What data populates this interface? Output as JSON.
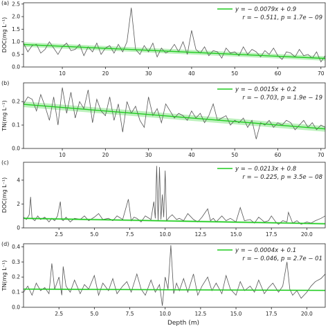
{
  "figure": {
    "xlabel": "Depth (m)"
  },
  "colors": {
    "data": "#555555",
    "fit": "#1fcc1f",
    "band": "#8fe88f",
    "axis": "#222222"
  },
  "chart_data": [
    {
      "type": "line",
      "panel_label": "(a)",
      "ylabel": "DOC(mg L⁻¹)",
      "xlim": [
        1,
        71
      ],
      "ylim": [
        0.0,
        2.55
      ],
      "xticks": [
        10,
        20,
        30,
        40,
        50,
        60,
        70
      ],
      "yticks": [
        0.0,
        0.5,
        1.0,
        1.5,
        2.0,
        2.5
      ],
      "ytick_labels": [
        "0.0",
        "0.5",
        "1.0",
        "1.5",
        "2.0",
        "2.5"
      ],
      "legend_line1": "y = − 0.0079x + 0.9",
      "legend_line2": "r = − 0.511, p = 1.7e − 09",
      "fit": {
        "slope": -0.0079,
        "intercept": 0.9,
        "band": 0.09
      },
      "series": [
        {
          "x": [
            1,
            2,
            3,
            4,
            5,
            6,
            7,
            8,
            9,
            10,
            11,
            12,
            13,
            14,
            15,
            16,
            17,
            18,
            19,
            20,
            21,
            22,
            23,
            24,
            25,
            26,
            27,
            28,
            29,
            30,
            31,
            32,
            33,
            34,
            35,
            36,
            37,
            38,
            39,
            40,
            41,
            42,
            43,
            44,
            45,
            46,
            47,
            48,
            49,
            50,
            51,
            52,
            53,
            54,
            55,
            56,
            57,
            58,
            59,
            60,
            61,
            62,
            63,
            64,
            65,
            66,
            67,
            68,
            69,
            70,
            71
          ],
          "y": [
            0.95,
            0.6,
            0.85,
            0.9,
            0.55,
            0.7,
            1.0,
            0.75,
            0.5,
            0.8,
            0.95,
            0.65,
            0.7,
            0.9,
            0.45,
            0.8,
            0.6,
            0.95,
            0.5,
            0.75,
            0.85,
            0.55,
            0.9,
            0.6,
            1.0,
            2.35,
            0.7,
            0.5,
            0.85,
            0.6,
            0.95,
            0.4,
            0.75,
            0.55,
            0.65,
            0.9,
            0.6,
            1.0,
            0.5,
            1.45,
            0.7,
            0.55,
            0.8,
            0.45,
            0.65,
            0.6,
            0.35,
            0.75,
            0.55,
            0.6,
            0.45,
            0.8,
            0.5,
            0.7,
            0.6,
            0.4,
            0.65,
            0.5,
            0.75,
            0.45,
            0.3,
            0.6,
            0.55,
            0.4,
            0.7,
            0.45,
            0.5,
            0.35,
            0.6,
            0.2,
            0.45
          ]
        }
      ]
    },
    {
      "type": "line",
      "panel_label": "(b)",
      "ylabel": "TN(mg L⁻¹)",
      "xlim": [
        1,
        71
      ],
      "ylim": [
        0.0,
        0.28
      ],
      "xticks": [
        10,
        20,
        30,
        40,
        50,
        60,
        70
      ],
      "yticks": [
        0.0,
        0.1,
        0.2
      ],
      "ytick_labels": [
        "0.0",
        "0.1",
        "0.2"
      ],
      "legend_line1": "y = − 0.0015x + 0.2",
      "legend_line2": "r = − 0.703, p = 1.9e − 19",
      "fit": {
        "slope": -0.0015,
        "intercept": 0.19,
        "band": 0.012
      },
      "series": [
        {
          "x": [
            1,
            2,
            3,
            4,
            5,
            6,
            7,
            8,
            9,
            10,
            11,
            12,
            13,
            14,
            15,
            16,
            17,
            18,
            19,
            20,
            21,
            22,
            23,
            24,
            25,
            26,
            27,
            28,
            29,
            30,
            31,
            32,
            33,
            34,
            35,
            36,
            37,
            38,
            39,
            40,
            41,
            42,
            43,
            44,
            45,
            46,
            47,
            48,
            49,
            50,
            51,
            52,
            53,
            54,
            55,
            56,
            57,
            58,
            59,
            60,
            61,
            62,
            63,
            64,
            65,
            66,
            67,
            68,
            69,
            70,
            71
          ],
          "y": [
            0.19,
            0.22,
            0.21,
            0.16,
            0.23,
            0.18,
            0.12,
            0.22,
            0.1,
            0.26,
            0.15,
            0.24,
            0.13,
            0.2,
            0.17,
            0.25,
            0.11,
            0.21,
            0.16,
            0.14,
            0.22,
            0.12,
            0.19,
            0.07,
            0.2,
            0.15,
            0.18,
            0.12,
            0.09,
            0.22,
            0.14,
            0.17,
            0.11,
            0.19,
            0.16,
            0.13,
            0.15,
            0.14,
            0.12,
            0.16,
            0.13,
            0.15,
            0.11,
            0.14,
            0.19,
            0.12,
            0.13,
            0.14,
            0.1,
            0.12,
            0.11,
            0.13,
            0.09,
            0.12,
            0.04,
            0.11,
            0.1,
            0.12,
            0.09,
            0.11,
            0.1,
            0.12,
            0.11,
            0.08,
            0.1,
            0.12,
            0.09,
            0.11,
            0.08,
            0.1,
            0.09
          ]
        }
      ]
    },
    {
      "type": "line",
      "panel_label": "(c)",
      "ylabel": "DOC(mg L⁻¹)",
      "xlim": [
        0.0,
        21.3
      ],
      "ylim": [
        0.0,
        5.5
      ],
      "xticks": [
        2.5,
        5.0,
        7.5,
        10.0,
        12.5,
        15.0,
        17.5,
        20.0
      ],
      "xtick_labels": [
        "2.5",
        "5.0",
        "7.5",
        "10.0",
        "12.5",
        "15.0",
        "17.5",
        "20.0"
      ],
      "yticks": [
        0,
        2,
        4
      ],
      "ytick_labels": [
        "0",
        "2",
        "4"
      ],
      "legend_line1": "y = − 0.0213x + 0.8",
      "legend_line2": "r = − 0.225, p = 3.5e − 08",
      "fit": {
        "slope": -0.0213,
        "intercept": 0.8,
        "band": 0.08
      },
      "series": [
        {
          "x": [
            0.0,
            0.2,
            0.4,
            0.5,
            0.6,
            0.8,
            1.0,
            1.2,
            1.5,
            1.8,
            2.0,
            2.2,
            2.4,
            2.6,
            2.7,
            2.8,
            3.0,
            3.3,
            3.6,
            4.0,
            4.3,
            4.6,
            5.0,
            5.3,
            5.6,
            6.0,
            6.3,
            6.6,
            7.0,
            7.4,
            7.6,
            7.8,
            8.0,
            8.3,
            8.6,
            9.0,
            9.2,
            9.3,
            9.4,
            9.5,
            9.6,
            9.7,
            9.8,
            9.9,
            10.0,
            10.1,
            10.3,
            10.5,
            10.8,
            11.0,
            11.3,
            11.6,
            12.0,
            12.3,
            12.6,
            13.0,
            13.2,
            13.4,
            13.6,
            14.0,
            14.3,
            14.6,
            15.0,
            15.3,
            15.6,
            16.0,
            16.3,
            16.6,
            17.0,
            17.3,
            17.5,
            17.8,
            18.0,
            18.3,
            18.6,
            18.7,
            19.0,
            19.3,
            19.6,
            20.0,
            20.3,
            20.6,
            21.0,
            21.3
          ],
          "y": [
            0.9,
            0.7,
            1.1,
            2.6,
            0.8,
            0.6,
            1.0,
            0.7,
            0.9,
            0.5,
            0.8,
            0.6,
            1.0,
            2.2,
            0.7,
            0.6,
            0.9,
            0.5,
            0.8,
            0.7,
            1.0,
            0.6,
            0.9,
            1.2,
            0.7,
            0.8,
            0.6,
            1.0,
            0.7,
            2.4,
            0.6,
            0.9,
            0.8,
            0.5,
            1.0,
            0.7,
            2.2,
            0.8,
            5.2,
            0.6,
            5.1,
            0.7,
            2.8,
            0.9,
            4.8,
            0.6,
            0.9,
            1.1,
            0.7,
            0.8,
            0.6,
            1.2,
            0.7,
            0.5,
            0.9,
            1.6,
            0.6,
            0.8,
            0.5,
            1.0,
            0.6,
            0.8,
            0.5,
            1.7,
            0.6,
            0.7,
            0.4,
            0.9,
            0.5,
            0.6,
            1.0,
            0.5,
            0.3,
            0.6,
            0.5,
            1.3,
            0.4,
            0.6,
            0.3,
            0.5,
            0.4,
            0.6,
            0.8,
            1.0
          ]
        }
      ]
    },
    {
      "type": "line",
      "panel_label": "(d)",
      "ylabel": "TN(mg L⁻¹)",
      "xlim": [
        0.0,
        21.3
      ],
      "ylim": [
        0.0,
        0.42
      ],
      "xticks": [
        2.5,
        5.0,
        7.5,
        10.0,
        12.5,
        15.0,
        17.5,
        20.0
      ],
      "xtick_labels": [
        "2.5",
        "5.0",
        "7.5",
        "10.0",
        "12.5",
        "15.0",
        "17.5",
        "20.0"
      ],
      "yticks": [
        0.0,
        0.1,
        0.2,
        0.3,
        0.4
      ],
      "ytick_labels": [
        "0.0",
        "0.1",
        "0.2",
        "0.3",
        "0.4"
      ],
      "legend_line1": "y = − 0.0004x + 0.1",
      "legend_line2": "r = − 0.046, p = 2.7e − 01",
      "fit": {
        "slope": -0.0004,
        "intercept": 0.12,
        "band": 0.005
      },
      "series": [
        {
          "x": [
            0.0,
            0.3,
            0.6,
            0.9,
            1.2,
            1.5,
            1.8,
            2.0,
            2.2,
            2.5,
            2.7,
            2.8,
            3.0,
            3.3,
            3.6,
            4.0,
            4.3,
            4.6,
            5.0,
            5.3,
            5.6,
            6.0,
            6.3,
            6.6,
            7.0,
            7.3,
            7.6,
            8.0,
            8.3,
            8.6,
            9.0,
            9.3,
            9.6,
            9.8,
            10.0,
            10.2,
            10.4,
            10.6,
            10.8,
            11.0,
            11.3,
            11.6,
            12.0,
            12.3,
            12.6,
            13.0,
            13.3,
            13.6,
            14.0,
            14.3,
            14.6,
            15.0,
            15.3,
            15.6,
            16.0,
            16.3,
            16.6,
            17.0,
            17.3,
            17.6,
            18.0,
            18.3,
            18.6,
            18.8,
            19.0,
            19.3,
            19.6,
            20.0,
            20.3,
            20.6,
            21.0,
            21.3
          ],
          "y": [
            0.1,
            0.14,
            0.08,
            0.16,
            0.11,
            0.13,
            0.09,
            0.29,
            0.12,
            0.2,
            0.08,
            0.27,
            0.14,
            0.1,
            0.18,
            0.09,
            0.15,
            0.12,
            0.21,
            0.08,
            0.16,
            0.11,
            0.19,
            0.09,
            0.14,
            0.17,
            0.1,
            0.22,
            0.12,
            0.08,
            0.18,
            0.1,
            0.15,
            0.01,
            0.2,
            0.12,
            0.41,
            0.09,
            0.16,
            0.11,
            0.19,
            0.1,
            0.22,
            0.08,
            0.14,
            0.2,
            0.11,
            0.16,
            0.09,
            0.21,
            0.12,
            0.08,
            0.17,
            0.11,
            0.14,
            0.1,
            0.18,
            0.09,
            0.13,
            0.16,
            0.1,
            0.14,
            0.3,
            0.12,
            0.08,
            0.11,
            0.06,
            0.1,
            0.14,
            0.17,
            0.19,
            0.22
          ]
        }
      ]
    }
  ]
}
